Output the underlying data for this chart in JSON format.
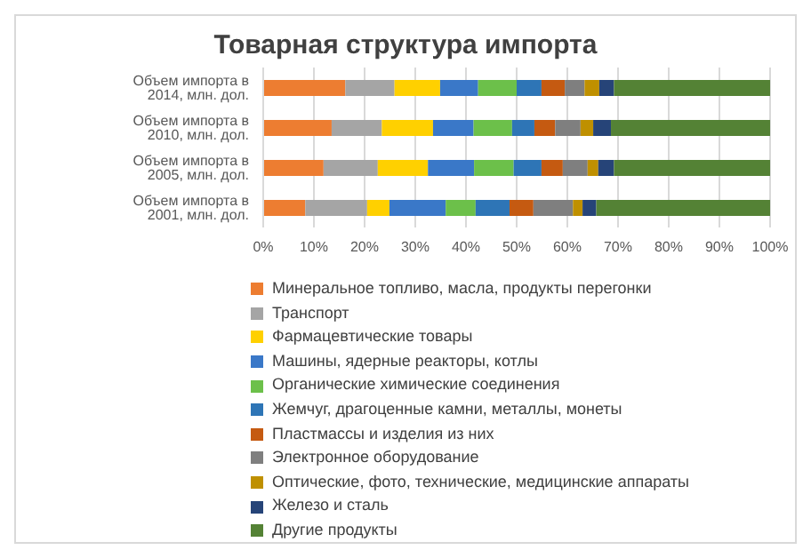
{
  "chart_data": {
    "type": "bar",
    "orientation": "horizontal",
    "stacked": true,
    "title": "Товарная структура импорта",
    "categories": [
      "Объем импорта в 2014, млн. дол.",
      "Объем импорта в 2010, млн. дол.",
      "Объем импорта в 2005, млн. дол.",
      "Объем импорта в 2001, млн. дол."
    ],
    "series": [
      {
        "name": "Минеральное топливо, масла, продукты перегонки",
        "color": "#ed7d31",
        "values": [
          16.2,
          13.5,
          11.9,
          8.3
        ]
      },
      {
        "name": "Транспорт",
        "color": "#a5a5a5",
        "values": [
          9.7,
          9.9,
          10.7,
          12.2
        ]
      },
      {
        "name": "Фармацевтические товары",
        "color": "#ffd000",
        "values": [
          9.0,
          10.1,
          9.9,
          4.4
        ]
      },
      {
        "name": "Машины, ядерные реакторы, котлы",
        "color": "#3a78c8",
        "values": [
          7.5,
          8.0,
          9.1,
          11.1
        ]
      },
      {
        "name": "Органические химические соединения",
        "color": "#6cc04a",
        "values": [
          7.6,
          7.6,
          7.8,
          5.9
        ]
      },
      {
        "name": "Жемчуг, драгоценные камни, металлы, монеты",
        "color": "#2e75b6",
        "values": [
          4.9,
          4.4,
          5.5,
          6.7
        ]
      },
      {
        "name": "Пластмассы и изделия из них",
        "color": "#c55a11",
        "values": [
          4.6,
          4.1,
          4.2,
          4.7
        ]
      },
      {
        "name": "Электронное оборудование",
        "color": "#7f7f7f",
        "values": [
          3.9,
          5.0,
          4.9,
          7.8
        ]
      },
      {
        "name": "Оптические, фото, технические, медицинские аппараты",
        "color": "#bf9000",
        "values": [
          2.9,
          2.5,
          2.1,
          1.9
        ]
      },
      {
        "name": "Железо и сталь",
        "color": "#264478",
        "values": [
          2.9,
          3.5,
          3.1,
          2.7
        ]
      },
      {
        "name": "Другие продукты",
        "color": "#548235",
        "values": [
          30.8,
          31.4,
          30.8,
          34.3
        ]
      }
    ],
    "xlim": [
      0,
      100
    ],
    "xticks": [
      {
        "value": 0,
        "label": "0%"
      },
      {
        "value": 10,
        "label": "10%"
      },
      {
        "value": 20,
        "label": "20%"
      },
      {
        "value": 30,
        "label": "30%"
      },
      {
        "value": 40,
        "label": "40%"
      },
      {
        "value": 50,
        "label": "50%"
      },
      {
        "value": 60,
        "label": "60%"
      },
      {
        "value": 70,
        "label": "70%"
      },
      {
        "value": 80,
        "label": "80%"
      },
      {
        "value": 90,
        "label": "90%"
      },
      {
        "value": 100,
        "label": "100%"
      }
    ],
    "grid": "x",
    "legend": "bottom"
  }
}
